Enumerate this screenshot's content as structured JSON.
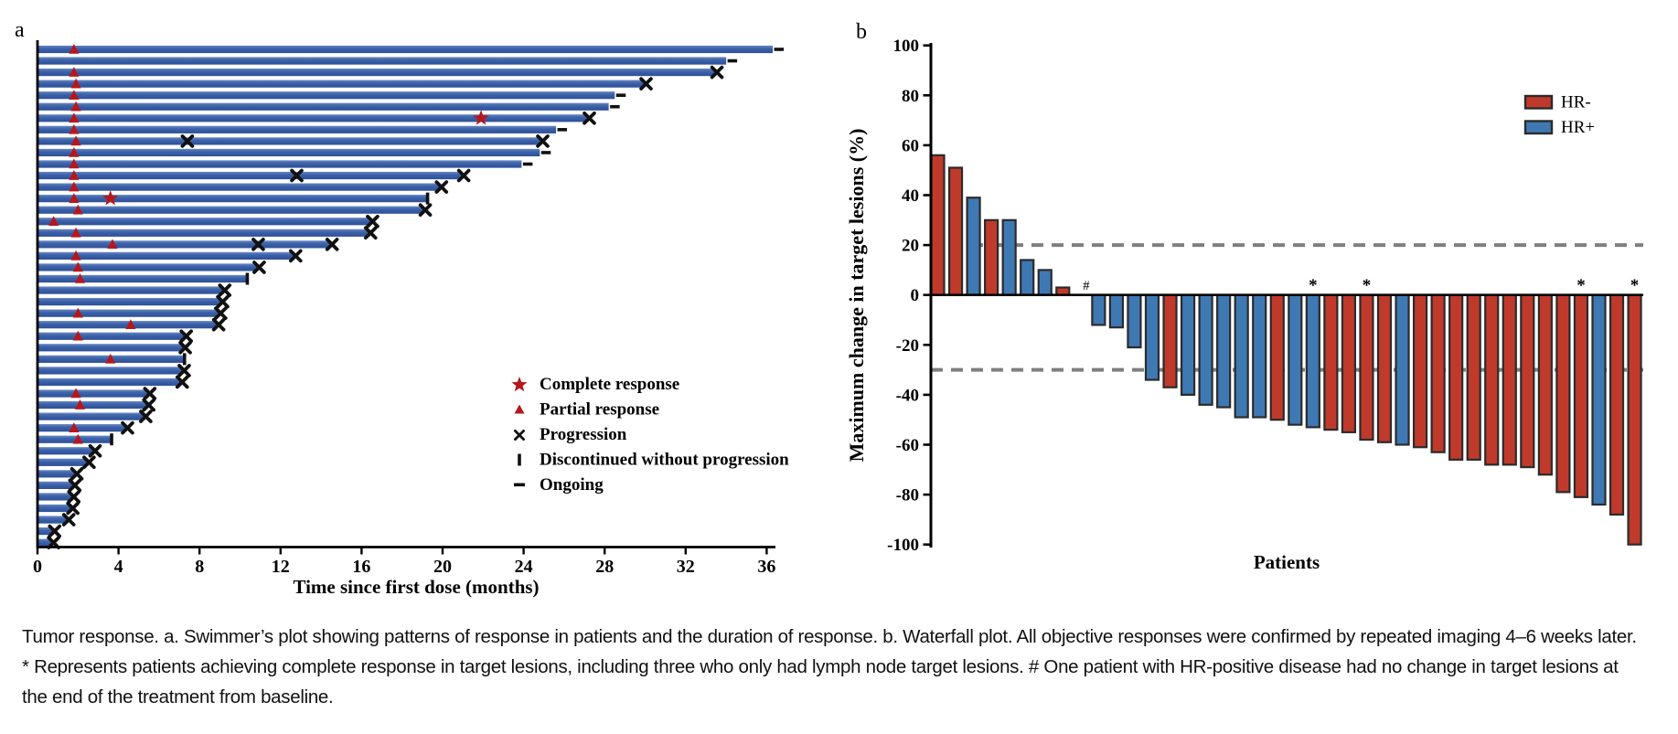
{
  "figure": {
    "panel_a_label": "a",
    "panel_b_label": "b"
  },
  "chart_data": [
    {
      "type": "swimmer",
      "panel": "a",
      "xlabel": "Time since first dose (months)",
      "xlim": [
        0,
        38
      ],
      "xticks": [
        0,
        4,
        8,
        12,
        16,
        20,
        24,
        28,
        32,
        36
      ],
      "bar_color": "#3a5fa9",
      "marker_red": "#b5181c",
      "marker_black": "#111111",
      "legend": [
        {
          "marker": "star",
          "label": "Complete response"
        },
        {
          "marker": "triangle",
          "label": "Partial response"
        },
        {
          "marker": "cross",
          "label": "Progression"
        },
        {
          "marker": "bar",
          "label": "Discontinued without progression"
        },
        {
          "marker": "dash",
          "label": "Ongoing"
        }
      ],
      "bars": [
        {
          "duration_months": 36.3,
          "end": "ongoing",
          "partial_response_month": 1.8
        },
        {
          "duration_months": 34.0,
          "end": "ongoing"
        },
        {
          "duration_months": 33.5,
          "end": "progression",
          "partial_response_month": 1.8
        },
        {
          "duration_months": 30.0,
          "end": "progression",
          "partial_response_month": 1.9
        },
        {
          "duration_months": 28.5,
          "end": "ongoing",
          "partial_response_month": 1.8
        },
        {
          "duration_months": 28.2,
          "end": "ongoing",
          "partial_response_month": 1.9
        },
        {
          "duration_months": 27.2,
          "end": "progression",
          "partial_response_month": 1.8,
          "complete_response_month": 21.9
        },
        {
          "duration_months": 25.6,
          "end": "ongoing",
          "partial_response_month": 1.8
        },
        {
          "duration_months": 24.9,
          "end": "progression",
          "partial_response_month": 1.9,
          "mid_progression_months": [
            7.4
          ]
        },
        {
          "duration_months": 24.8,
          "end": "ongoing",
          "partial_response_month": 1.8
        },
        {
          "duration_months": 23.9,
          "end": "ongoing",
          "partial_response_month": 1.8
        },
        {
          "duration_months": 21.0,
          "end": "progression",
          "partial_response_month": 1.8,
          "mid_progression_months": [
            12.8
          ]
        },
        {
          "duration_months": 19.9,
          "end": "progression",
          "partial_response_month": 1.8
        },
        {
          "duration_months": 19.2,
          "end": "discontinued",
          "partial_response_month": 1.8,
          "complete_response_month": 3.6
        },
        {
          "duration_months": 19.1,
          "end": "progression",
          "partial_response_month": 2.0
        },
        {
          "duration_months": 16.5,
          "end": "progression",
          "partial_response_month": 0.8
        },
        {
          "duration_months": 16.4,
          "end": "progression",
          "partial_response_month": 1.9
        },
        {
          "duration_months": 14.5,
          "end": "progression",
          "partial_response_month": 3.7,
          "mid_progression_months": [
            10.9
          ]
        },
        {
          "duration_months": 12.7,
          "end": "progression",
          "partial_response_month": 1.9
        },
        {
          "duration_months": 10.9,
          "end": "progression",
          "partial_response_month": 2.0
        },
        {
          "duration_months": 10.3,
          "end": "discontinued",
          "partial_response_month": 2.1
        },
        {
          "duration_months": 9.2,
          "end": "progression"
        },
        {
          "duration_months": 9.1,
          "end": "progression"
        },
        {
          "duration_months": 9.0,
          "end": "progression",
          "partial_response_month": 2.0
        },
        {
          "duration_months": 8.9,
          "end": "progression",
          "partial_response_month": 4.6
        },
        {
          "duration_months": 7.3,
          "end": "progression",
          "partial_response_month": 2.0
        },
        {
          "duration_months": 7.25,
          "end": "progression"
        },
        {
          "duration_months": 7.2,
          "end": "discontinued",
          "partial_response_month": 3.6
        },
        {
          "duration_months": 7.2,
          "end": "progression"
        },
        {
          "duration_months": 7.1,
          "end": "progression"
        },
        {
          "duration_months": 5.5,
          "end": "progression",
          "partial_response_month": 1.9
        },
        {
          "duration_months": 5.45,
          "end": "progression",
          "partial_response_month": 2.1
        },
        {
          "duration_months": 5.3,
          "end": "progression"
        },
        {
          "duration_months": 4.4,
          "end": "progression",
          "partial_response_month": 1.8
        },
        {
          "duration_months": 3.6,
          "end": "discontinued",
          "partial_response_month": 2.0
        },
        {
          "duration_months": 2.8,
          "end": "progression"
        },
        {
          "duration_months": 2.5,
          "end": "progression"
        },
        {
          "duration_months": 1.9,
          "end": "progression"
        },
        {
          "duration_months": 1.8,
          "end": "progression"
        },
        {
          "duration_months": 1.75,
          "end": "progression"
        },
        {
          "duration_months": 1.7,
          "end": "progression"
        },
        {
          "duration_months": 1.5,
          "end": "progression"
        },
        {
          "duration_months": 0.8,
          "end": "progression"
        },
        {
          "duration_months": 0.75,
          "end": "progression"
        }
      ]
    },
    {
      "type": "waterfall",
      "panel": "b",
      "ylabel": "Maximum change in target lesions (%)",
      "xlabel": "Patients",
      "ylim": [
        -100,
        100
      ],
      "yticks": [
        100,
        80,
        60,
        40,
        20,
        0,
        -20,
        -40,
        -60,
        -80,
        -100
      ],
      "reference_lines_pct": [
        20,
        -30
      ],
      "colors": {
        "HR-": "#c03a2b",
        "HR+": "#3e79b4",
        "bar_border": "#2b2b2b",
        "ref_line": "#7f7f7f"
      },
      "legend": [
        {
          "label": "HR-",
          "group": "HR-"
        },
        {
          "label": "HR+",
          "group": "HR+"
        }
      ],
      "patients": [
        {
          "change_pct": 56,
          "group": "HR-"
        },
        {
          "change_pct": 51,
          "group": "HR-"
        },
        {
          "change_pct": 39,
          "group": "HR+"
        },
        {
          "change_pct": 30,
          "group": "HR-"
        },
        {
          "change_pct": 30,
          "group": "HR+"
        },
        {
          "change_pct": 14,
          "group": "HR+"
        },
        {
          "change_pct": 10,
          "group": "HR+"
        },
        {
          "change_pct": 3,
          "group": "HR-"
        },
        {
          "change_pct": 0,
          "group": "HR+",
          "annotation": "#"
        },
        {
          "change_pct": -12,
          "group": "HR+"
        },
        {
          "change_pct": -13,
          "group": "HR+"
        },
        {
          "change_pct": -21,
          "group": "HR+"
        },
        {
          "change_pct": -34,
          "group": "HR+"
        },
        {
          "change_pct": -37,
          "group": "HR-"
        },
        {
          "change_pct": -40,
          "group": "HR+"
        },
        {
          "change_pct": -44,
          "group": "HR+"
        },
        {
          "change_pct": -45,
          "group": "HR+"
        },
        {
          "change_pct": -49,
          "group": "HR+"
        },
        {
          "change_pct": -49,
          "group": "HR+"
        },
        {
          "change_pct": -50,
          "group": "HR-"
        },
        {
          "change_pct": -52,
          "group": "HR+"
        },
        {
          "change_pct": -53,
          "group": "HR+",
          "annotation": "*"
        },
        {
          "change_pct": -54,
          "group": "HR-"
        },
        {
          "change_pct": -55,
          "group": "HR-"
        },
        {
          "change_pct": -58,
          "group": "HR-",
          "annotation": "*"
        },
        {
          "change_pct": -59,
          "group": "HR-"
        },
        {
          "change_pct": -60,
          "group": "HR+"
        },
        {
          "change_pct": -61,
          "group": "HR-"
        },
        {
          "change_pct": -63,
          "group": "HR-"
        },
        {
          "change_pct": -66,
          "group": "HR-"
        },
        {
          "change_pct": -66,
          "group": "HR-"
        },
        {
          "change_pct": -68,
          "group": "HR-"
        },
        {
          "change_pct": -68,
          "group": "HR-"
        },
        {
          "change_pct": -69,
          "group": "HR-"
        },
        {
          "change_pct": -72,
          "group": "HR-"
        },
        {
          "change_pct": -79,
          "group": "HR-"
        },
        {
          "change_pct": -81,
          "group": "HR-",
          "annotation": "*"
        },
        {
          "change_pct": -84,
          "group": "HR+"
        },
        {
          "change_pct": -88,
          "group": "HR-"
        },
        {
          "change_pct": -100,
          "group": "HR-",
          "annotation": "*"
        }
      ]
    }
  ],
  "caption": {
    "text": "Tumor response. a. Swimmer’s plot showing patterns of response in patients and the duration of response. b. Waterfall plot. All objective responses were confirmed by repeated imaging 4–6 weeks later. * Represents patients achieving complete response in target lesions, including three who only had lymph node target lesions. # One patient with HR-positive disease had no change in target lesions at the end of the treatment from baseline."
  }
}
